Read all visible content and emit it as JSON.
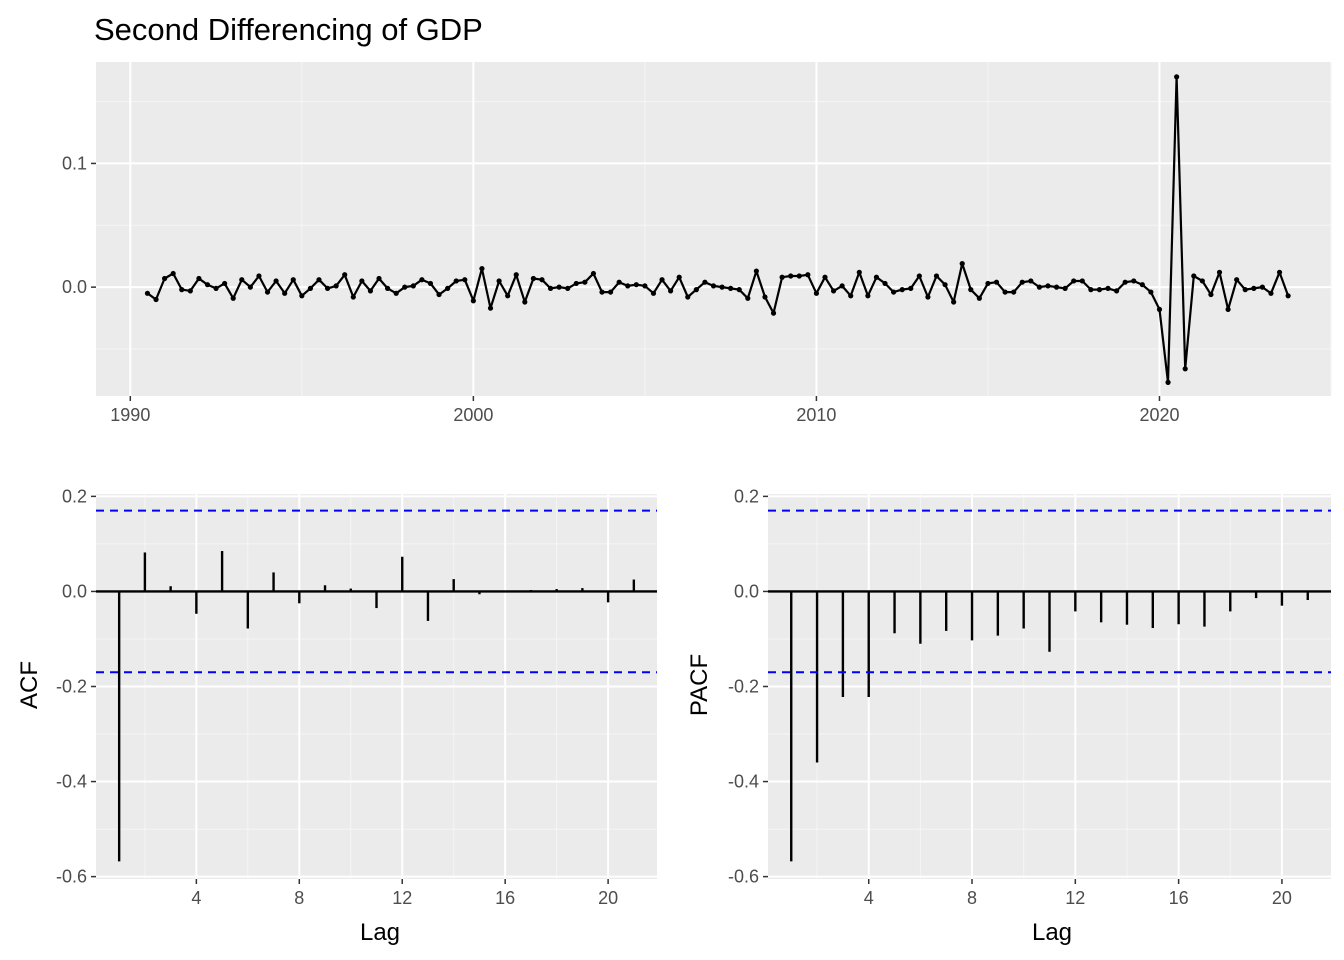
{
  "chart_data": [
    {
      "type": "line",
      "title": "Second Differencing of GDP",
      "xlabel": "",
      "ylabel": "",
      "xlim": [
        1989.0,
        2025.0
      ],
      "ylim": [
        -0.088,
        0.182
      ],
      "x_ticks": [
        1990,
        2000,
        2010,
        2020
      ],
      "x_tick_labels": [
        "1990",
        "2000",
        "2010",
        "2020"
      ],
      "y_ticks": [
        0.0,
        0.1
      ],
      "y_tick_labels": [
        "0.0",
        "0.1"
      ],
      "grid": true,
      "markers": true,
      "color": "#000000",
      "x_start": 1990.5,
      "x_step": 0.25,
      "values": [
        -0.005,
        -0.01,
        0.007,
        0.011,
        -0.002,
        -0.003,
        0.007,
        0.002,
        -0.001,
        0.003,
        -0.009,
        0.006,
        0.0,
        0.009,
        -0.004,
        0.005,
        -0.005,
        0.006,
        -0.007,
        -0.001,
        0.006,
        -0.001,
        0.001,
        0.01,
        -0.008,
        0.005,
        -0.003,
        0.007,
        -0.001,
        -0.005,
        0.0,
        0.001,
        0.006,
        0.003,
        -0.006,
        -0.001,
        0.005,
        0.006,
        -0.011,
        0.015,
        -0.017,
        0.005,
        -0.007,
        0.01,
        -0.012,
        0.007,
        0.006,
        -0.001,
        0.0,
        -0.001,
        0.003,
        0.004,
        0.011,
        -0.004,
        -0.004,
        0.004,
        0.001,
        0.002,
        0.001,
        -0.005,
        0.006,
        -0.003,
        0.008,
        -0.008,
        -0.002,
        0.004,
        0.001,
        0.0,
        -0.001,
        -0.002,
        -0.009,
        0.013,
        -0.008,
        -0.021,
        0.008,
        0.009,
        0.009,
        0.01,
        -0.005,
        0.008,
        -0.003,
        0.001,
        -0.007,
        0.012,
        -0.007,
        0.008,
        0.003,
        -0.004,
        -0.002,
        -0.001,
        0.009,
        -0.008,
        0.009,
        0.002,
        -0.012,
        0.019,
        -0.002,
        -0.009,
        0.003,
        0.004,
        -0.004,
        -0.004,
        0.004,
        0.005,
        0.0,
        0.001,
        0.0,
        -0.001,
        0.005,
        0.005,
        -0.002,
        -0.002,
        -0.001,
        -0.003,
        0.004,
        0.005,
        0.002,
        -0.004,
        -0.018,
        -0.077,
        0.17,
        -0.066,
        0.009,
        0.005,
        -0.006,
        0.012,
        -0.018,
        0.006,
        -0.002,
        -0.001,
        0.0,
        -0.005,
        0.012,
        -0.007
      ]
    },
    {
      "type": "bar",
      "xlabel": "Lag",
      "ylabel": "ACF",
      "xlim": [
        0.1,
        21.9
      ],
      "ylim": [
        -0.605,
        0.205
      ],
      "x_ticks": [
        4,
        8,
        12,
        16,
        20
      ],
      "x_tick_labels": [
        "4",
        "8",
        "12",
        "16",
        "20"
      ],
      "y_ticks": [
        -0.6,
        -0.4,
        -0.2,
        0.0,
        0.2
      ],
      "y_tick_labels": [
        "-0.6",
        "-0.4",
        "-0.2",
        "0.0",
        "0.2"
      ],
      "grid": true,
      "lags": [
        1,
        2,
        3,
        4,
        5,
        6,
        7,
        8,
        9,
        10,
        11,
        12,
        13,
        14,
        15,
        16,
        17,
        18,
        19,
        20,
        21
      ],
      "values": [
        -0.568,
        0.082,
        0.011,
        -0.047,
        0.085,
        -0.078,
        0.04,
        -0.025,
        0.013,
        0.006,
        -0.035,
        0.073,
        -0.062,
        0.026,
        -0.006,
        0.002,
        0.003,
        0.005,
        0.007,
        -0.023,
        0.025
      ],
      "confidence_limits": [
        0.17,
        -0.17
      ],
      "confidence_color": "#0000ff",
      "bar_color": "#000000"
    },
    {
      "type": "bar",
      "xlabel": "Lag",
      "ylabel": "PACF",
      "xlim": [
        0.1,
        21.9
      ],
      "ylim": [
        -0.605,
        0.205
      ],
      "x_ticks": [
        4,
        8,
        12,
        16,
        20
      ],
      "x_tick_labels": [
        "4",
        "8",
        "12",
        "16",
        "20"
      ],
      "y_ticks": [
        -0.6,
        -0.4,
        -0.2,
        0.0,
        0.2
      ],
      "y_tick_labels": [
        "-0.6",
        "-0.4",
        "-0.2",
        "0.0",
        "0.2"
      ],
      "grid": true,
      "lags": [
        1,
        2,
        3,
        4,
        5,
        6,
        7,
        8,
        9,
        10,
        11,
        12,
        13,
        14,
        15,
        16,
        17,
        18,
        19,
        20,
        21
      ],
      "values": [
        -0.568,
        -0.36,
        -0.222,
        -0.222,
        -0.088,
        -0.11,
        -0.083,
        -0.103,
        -0.093,
        -0.078,
        -0.127,
        -0.042,
        -0.065,
        -0.07,
        -0.077,
        -0.069,
        -0.074,
        -0.042,
        -0.014,
        -0.03,
        -0.018
      ],
      "confidence_limits": [
        0.17,
        -0.17
      ],
      "confidence_color": "#0000ff",
      "bar_color": "#000000"
    }
  ]
}
